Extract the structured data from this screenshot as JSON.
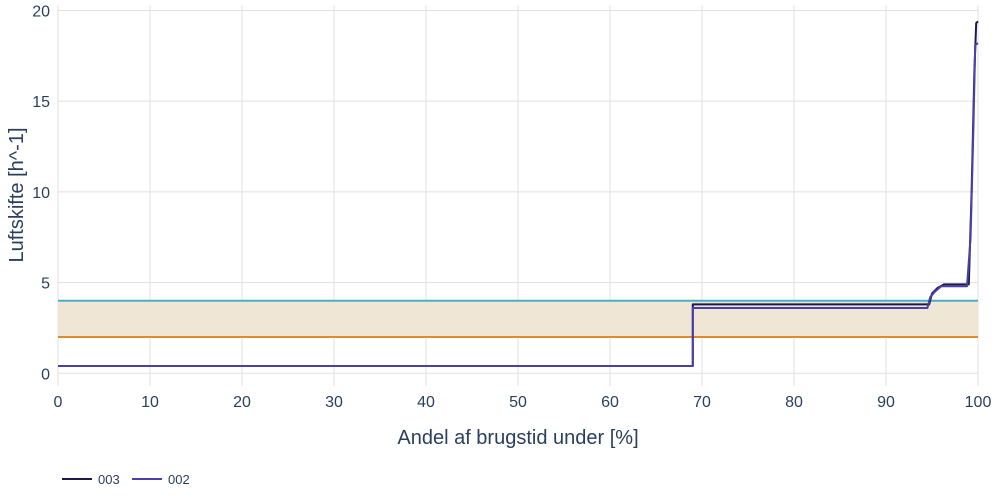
{
  "chart_data": {
    "type": "line",
    "xlabel": "Andel af brugstid under [%]",
    "ylabel": "Luftskifte [h^-1]",
    "xlim": [
      0,
      100
    ],
    "ylim": [
      -0.7,
      20.3
    ],
    "x_ticks": [
      "0",
      "10",
      "20",
      "30",
      "40",
      "50",
      "60",
      "70",
      "80",
      "90",
      "100"
    ],
    "y_ticks": [
      "0",
      "5",
      "10",
      "15",
      "20"
    ],
    "grid": true,
    "legend_position": "bottom-left",
    "series": [
      {
        "name": "003",
        "color": "#1a1a4e",
        "x": [
          0,
          69,
          69,
          94.7,
          95.0,
          95.6,
          96.3,
          99.0,
          99.3,
          99.6,
          99.8,
          100
        ],
        "y": [
          0.4,
          0.4,
          3.8,
          3.8,
          4.4,
          4.7,
          4.9,
          4.9,
          10.0,
          16.5,
          19.3,
          19.4
        ]
      },
      {
        "name": "002",
        "color": "#4b3fa8",
        "x": [
          0,
          69,
          69,
          94.5,
          94.8,
          95.3,
          96.0,
          98.8,
          99.2,
          99.5,
          99.7,
          100
        ],
        "y": [
          0.4,
          0.4,
          3.6,
          3.6,
          4.2,
          4.5,
          4.8,
          4.8,
          7.5,
          13.5,
          18.1,
          18.2
        ]
      }
    ],
    "reference_lines": [
      {
        "y": 4,
        "color": "#4ab0c1"
      },
      {
        "y": 2,
        "color": "#e08a2e"
      }
    ],
    "shaded_band": {
      "y0": 2,
      "y1": 4,
      "color": "#f0e6d6"
    }
  }
}
